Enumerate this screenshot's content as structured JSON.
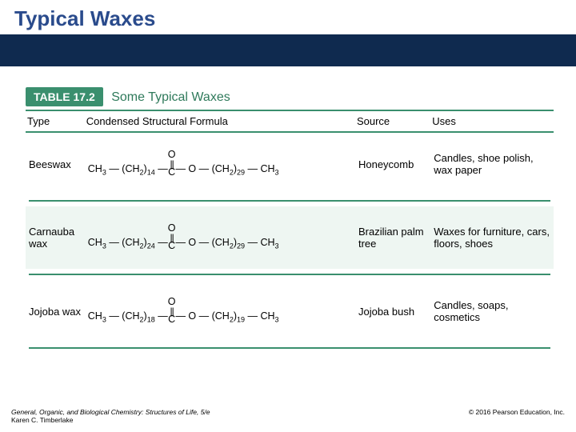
{
  "colors": {
    "title": "#2a4b8c",
    "band": "#0f2a4f",
    "tableLabelBg": "#3a8f6e",
    "tableCaption": "#2f7a5b",
    "ruleGreen": "#3a8f6e",
    "altRow": "#eef6f2",
    "text": "#222222"
  },
  "page": {
    "title": "Typical Waxes"
  },
  "table": {
    "label": "TABLE 17.2",
    "caption": "Some Typical Waxes",
    "headers": {
      "type": "Type",
      "formula": "Condensed Structural Formula",
      "source": "Source",
      "uses": "Uses"
    },
    "rows": [
      {
        "type": "Beeswax",
        "left_n": "14",
        "right_n": "29",
        "source": "Honeycomb",
        "uses": "Candles, shoe polish, wax paper",
        "alt": false
      },
      {
        "type": "Carnauba wax",
        "left_n": "24",
        "right_n": "29",
        "source": "Brazilian palm tree",
        "uses": "Waxes for furniture, cars, floors, shoes",
        "alt": true
      },
      {
        "type": "Jojoba wax",
        "left_n": "18",
        "right_n": "19",
        "source": "Jojoba bush",
        "uses": "Candles, soaps, cosmetics",
        "alt": false
      }
    ]
  },
  "footer": {
    "book": "General, Organic, and Biological Chemistry: Structures of Life, 5/e",
    "author": "Karen C. Timberlake",
    "copyright": "© 2016 Pearson Education, Inc."
  }
}
